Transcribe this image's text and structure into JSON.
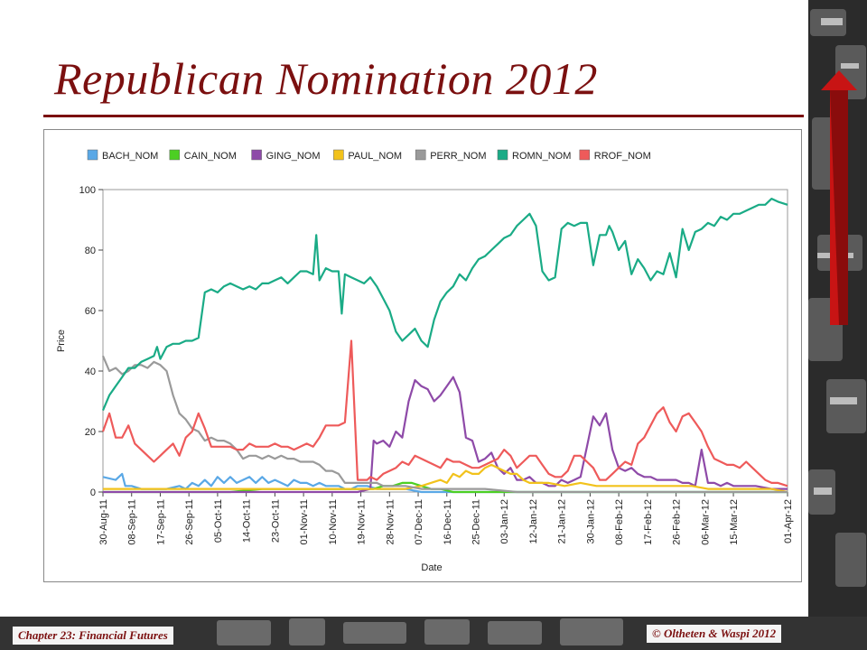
{
  "slide": {
    "title": "Republican Nomination 2012",
    "footer_left": "Chapter 23: Financial Futures",
    "footer_right": "© Oltheten & Waspi 2012",
    "accent_color": "#7b1010"
  },
  "chart_data": {
    "type": "line",
    "title": "",
    "xlabel": "Date",
    "ylabel": "Price",
    "ylim": [
      0,
      100
    ],
    "yticks": [
      0,
      20,
      40,
      60,
      80,
      100
    ],
    "xlim_days": [
      0,
      215
    ],
    "x_start_date": "2011-08-30",
    "x_tick_labels": [
      "30-Aug-11",
      "08-Sep-11",
      "17-Sep-11",
      "26-Sep-11",
      "05-Oct-11",
      "14-Oct-11",
      "23-Oct-11",
      "01-Nov-11",
      "10-Nov-11",
      "19-Nov-11",
      "28-Nov-11",
      "07-Dec-11",
      "16-Dec-11",
      "25-Dec-11",
      "03-Jan-12",
      "12-Jan-12",
      "21-Jan-12",
      "30-Jan-12",
      "08-Feb-12",
      "17-Feb-12",
      "26-Feb-12",
      "06-Mar-12",
      "15-Mar-12",
      "01-Apr-12"
    ],
    "legend_position": "top",
    "grid": false,
    "series": [
      {
        "name": "BACH_NOM",
        "color": "#5aa8e6",
        "x": [
          0,
          4,
          6,
          7,
          9,
          12,
          16,
          20,
          24,
          26,
          28,
          30,
          32,
          34,
          36,
          38,
          40,
          42,
          44,
          46,
          48,
          50,
          52,
          54,
          56,
          58,
          60,
          62,
          64,
          66,
          68,
          70,
          72,
          74,
          76,
          78,
          80,
          83,
          86,
          90,
          95,
          100,
          110,
          120,
          130,
          140,
          150,
          160,
          170,
          180,
          190,
          200,
          210,
          215
        ],
        "y": [
          5,
          4,
          6,
          2,
          2,
          1,
          1,
          1,
          2,
          1,
          3,
          2,
          4,
          2,
          5,
          3,
          5,
          3,
          4,
          5,
          3,
          5,
          3,
          4,
          3,
          2,
          4,
          3,
          3,
          2,
          3,
          2,
          2,
          2,
          1,
          1,
          2,
          2,
          1,
          1,
          1,
          0,
          0,
          0,
          0,
          0,
          0,
          0,
          0,
          0,
          0,
          0,
          0,
          0
        ]
      },
      {
        "name": "CAIN_NOM",
        "color": "#4ccf22",
        "x": [
          0,
          10,
          20,
          30,
          40,
          50,
          60,
          70,
          80,
          85,
          88,
          91,
          94,
          97,
          100,
          103,
          106,
          110,
          120,
          130,
          140,
          150,
          160,
          170,
          180,
          190,
          200,
          210,
          215
        ],
        "y": [
          0,
          0,
          0,
          0,
          0,
          1,
          1,
          1,
          1,
          1,
          2,
          2,
          3,
          3,
          2,
          1,
          1,
          0,
          0,
          0,
          0,
          0,
          0,
          0,
          0,
          0,
          0,
          0,
          0
        ]
      },
      {
        "name": "GING_NOM",
        "color": "#8e4aa8",
        "x": [
          0,
          10,
          20,
          30,
          40,
          50,
          60,
          70,
          80,
          84,
          85,
          86,
          88,
          90,
          92,
          94,
          96,
          98,
          100,
          102,
          104,
          106,
          108,
          110,
          112,
          114,
          116,
          118,
          120,
          122,
          124,
          126,
          128,
          130,
          132,
          134,
          136,
          138,
          140,
          142,
          144,
          146,
          148,
          150,
          152,
          154,
          156,
          158,
          160,
          162,
          164,
          166,
          168,
          170,
          172,
          174,
          176,
          178,
          180,
          182,
          184,
          186,
          188,
          190,
          192,
          194,
          196,
          198,
          200,
          205,
          210,
          215
        ],
        "y": [
          0,
          0,
          0,
          0,
          0,
          0,
          0,
          0,
          0,
          1,
          17,
          16,
          17,
          15,
          20,
          18,
          30,
          37,
          35,
          34,
          30,
          32,
          35,
          38,
          33,
          18,
          17,
          10,
          11,
          13,
          8,
          6,
          8,
          4,
          4,
          5,
          3,
          3,
          2,
          2,
          4,
          3,
          4,
          5,
          15,
          25,
          22,
          26,
          14,
          8,
          7,
          8,
          6,
          5,
          5,
          4,
          4,
          4,
          4,
          3,
          3,
          2,
          14,
          3,
          3,
          2,
          3,
          2,
          2,
          2,
          1,
          1
        ]
      },
      {
        "name": "PAUL_NOM",
        "color": "#f2c21b",
        "x": [
          0,
          10,
          20,
          30,
          40,
          50,
          60,
          70,
          80,
          90,
          95,
          100,
          103,
          106,
          108,
          110,
          112,
          114,
          116,
          118,
          120,
          122,
          124,
          126,
          128,
          130,
          132,
          134,
          136,
          138,
          140,
          145,
          150,
          155,
          160,
          165,
          170,
          175,
          180,
          185,
          190,
          195,
          200,
          205,
          210,
          215
        ],
        "y": [
          1,
          1,
          1,
          1,
          1,
          1,
          1,
          1,
          1,
          1,
          1,
          2,
          3,
          4,
          3,
          6,
          5,
          7,
          6,
          6,
          8,
          9,
          8,
          7,
          6,
          6,
          4,
          3,
          3,
          3,
          3,
          2,
          3,
          2,
          2,
          2,
          2,
          2,
          2,
          2,
          1,
          1,
          1,
          1,
          1,
          0
        ]
      },
      {
        "name": "PERR_NOM",
        "color": "#9a9a9a",
        "x": [
          0,
          2,
          4,
          6,
          8,
          10,
          12,
          14,
          16,
          18,
          20,
          22,
          24,
          26,
          28,
          30,
          32,
          34,
          36,
          38,
          40,
          42,
          44,
          46,
          48,
          50,
          52,
          54,
          56,
          58,
          60,
          62,
          64,
          66,
          68,
          70,
          72,
          74,
          76,
          78,
          80,
          82,
          84,
          86,
          88,
          90,
          95,
          100,
          110,
          120,
          130,
          140,
          150,
          160,
          170,
          180,
          190,
          200,
          210,
          215
        ],
        "y": [
          45,
          40,
          41,
          39,
          40,
          42,
          42,
          41,
          43,
          42,
          40,
          32,
          26,
          24,
          21,
          20,
          17,
          18,
          17,
          17,
          16,
          14,
          11,
          12,
          12,
          11,
          12,
          11,
          12,
          11,
          11,
          10,
          10,
          10,
          9,
          7,
          7,
          6,
          3,
          3,
          3,
          3,
          3,
          3,
          2,
          2,
          2,
          1,
          1,
          1,
          0,
          0,
          0,
          0,
          0,
          0,
          0,
          0,
          0,
          0
        ]
      },
      {
        "name": "ROMN_NOM",
        "color": "#1aab86",
        "x": [
          0,
          2,
          4,
          6,
          8,
          10,
          12,
          14,
          16,
          17,
          18,
          20,
          22,
          24,
          26,
          28,
          30,
          32,
          34,
          36,
          38,
          40,
          42,
          44,
          46,
          48,
          50,
          52,
          54,
          56,
          58,
          60,
          62,
          64,
          66,
          67,
          68,
          70,
          72,
          74,
          75,
          76,
          78,
          80,
          82,
          84,
          86,
          88,
          90,
          92,
          94,
          96,
          98,
          100,
          102,
          104,
          106,
          108,
          110,
          112,
          114,
          116,
          118,
          120,
          122,
          124,
          126,
          128,
          130,
          132,
          134,
          136,
          138,
          140,
          142,
          144,
          146,
          148,
          150,
          152,
          154,
          156,
          158,
          159,
          160,
          162,
          164,
          166,
          168,
          170,
          172,
          174,
          176,
          178,
          180,
          182,
          184,
          186,
          188,
          190,
          192,
          194,
          196,
          198,
          200,
          202,
          204,
          206,
          208,
          210,
          212,
          215
        ],
        "y": [
          27,
          32,
          35,
          38,
          41,
          41,
          43,
          44,
          45,
          48,
          44,
          48,
          49,
          49,
          50,
          50,
          51,
          66,
          67,
          66,
          68,
          69,
          68,
          67,
          68,
          67,
          69,
          69,
          70,
          71,
          69,
          71,
          73,
          73,
          72,
          85,
          70,
          74,
          73,
          73,
          59,
          72,
          71,
          70,
          69,
          71,
          68,
          64,
          60,
          53,
          50,
          52,
          54,
          50,
          48,
          57,
          63,
          66,
          68,
          72,
          70,
          74,
          77,
          78,
          80,
          82,
          84,
          85,
          88,
          90,
          92,
          88,
          73,
          70,
          71,
          87,
          89,
          88,
          89,
          89,
          75,
          85,
          85,
          88,
          86,
          80,
          83,
          72,
          77,
          74,
          70,
          73,
          72,
          79,
          71,
          87,
          80,
          86,
          87,
          89,
          88,
          91,
          90,
          92,
          92,
          93,
          94,
          95,
          95,
          97,
          96,
          95
        ]
      },
      {
        "name": "RROF_NOM",
        "color": "#ee5a5a",
        "x": [
          0,
          2,
          4,
          6,
          8,
          10,
          12,
          14,
          16,
          18,
          20,
          22,
          24,
          26,
          28,
          30,
          32,
          34,
          36,
          38,
          40,
          42,
          44,
          46,
          48,
          50,
          52,
          54,
          56,
          58,
          60,
          62,
          64,
          66,
          68,
          70,
          72,
          74,
          76,
          78,
          80,
          81,
          82,
          83,
          84,
          86,
          88,
          90,
          92,
          94,
          96,
          98,
          100,
          102,
          104,
          106,
          108,
          110,
          112,
          114,
          116,
          118,
          120,
          122,
          124,
          126,
          128,
          130,
          132,
          134,
          136,
          138,
          140,
          142,
          144,
          146,
          148,
          150,
          152,
          154,
          156,
          158,
          160,
          162,
          164,
          166,
          168,
          170,
          172,
          174,
          176,
          178,
          180,
          182,
          184,
          186,
          188,
          190,
          192,
          194,
          196,
          198,
          200,
          202,
          204,
          206,
          208,
          210,
          212,
          215
        ],
        "y": [
          20,
          26,
          18,
          18,
          22,
          16,
          14,
          12,
          10,
          12,
          14,
          16,
          12,
          18,
          20,
          26,
          21,
          15,
          15,
          15,
          15,
          14,
          14,
          16,
          15,
          15,
          15,
          16,
          15,
          15,
          14,
          15,
          16,
          15,
          18,
          22,
          22,
          22,
          23,
          50,
          4,
          4,
          4,
          4,
          5,
          4,
          6,
          7,
          8,
          10,
          9,
          12,
          11,
          10,
          9,
          8,
          11,
          10,
          10,
          9,
          8,
          8,
          9,
          10,
          11,
          14,
          12,
          8,
          10,
          12,
          12,
          9,
          6,
          5,
          5,
          7,
          12,
          12,
          10,
          8,
          4,
          4,
          6,
          8,
          10,
          9,
          16,
          18,
          22,
          26,
          28,
          23,
          20,
          25,
          26,
          23,
          20,
          15,
          11,
          10,
          9,
          9,
          8,
          10,
          8,
          6,
          4,
          3,
          3,
          2
        ]
      }
    ]
  }
}
